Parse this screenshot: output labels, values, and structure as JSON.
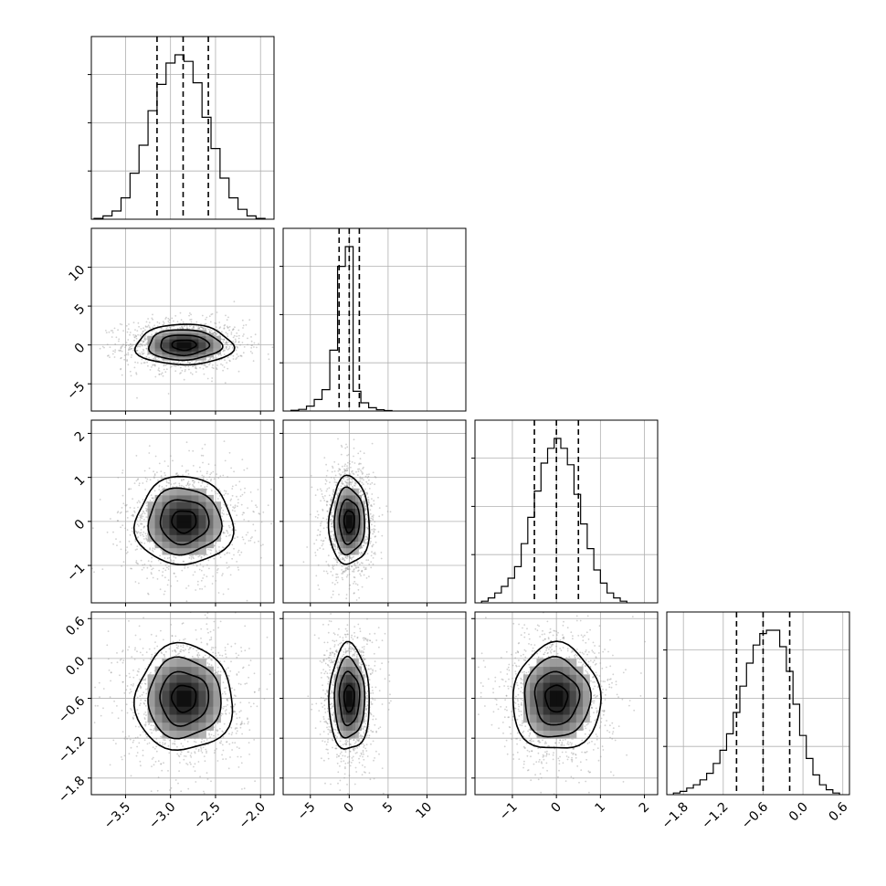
{
  "chart_data": {
    "type": "corner",
    "title": "",
    "grid": true,
    "quantiles": [
      0.16,
      0.5,
      0.84
    ],
    "parameters": [
      {
        "name": "",
        "mean": -2.85,
        "std": 0.27,
        "range": [
          -3.88,
          -1.85
        ],
        "ticks": [
          -3.5,
          -3.0,
          -2.5,
          -2.0
        ],
        "tick_labels": [
          "−3.5",
          "−3.0",
          "−2.5",
          "−2.0"
        ]
      },
      {
        "name": "",
        "mean": 0.0,
        "std": 1.3,
        "range": [
          -8.5,
          15.0
        ],
        "ticks": [
          -5,
          0,
          5,
          10
        ],
        "tick_labels": [
          "−5",
          "0",
          "5",
          "10"
        ]
      },
      {
        "name": "",
        "mean": 0.0,
        "std": 0.5,
        "range": [
          -1.85,
          2.3
        ],
        "ticks": [
          -1,
          0,
          1,
          2
        ],
        "tick_labels": [
          "−1",
          "0",
          "1",
          "2"
        ]
      },
      {
        "name": "",
        "mean": -0.6,
        "std": 0.4,
        "range": [
          -2.05,
          0.7
        ],
        "ticks": [
          -1.8,
          -1.2,
          -0.6,
          0.0,
          0.6
        ],
        "tick_labels": [
          "−1.8",
          "−1.2",
          "−0.6",
          "0.0",
          "0.6"
        ]
      }
    ],
    "histograms": [
      {
        "param": 0,
        "bin_edges": [
          -3.85,
          -3.75,
          -3.65,
          -3.55,
          -3.45,
          -3.35,
          -3.25,
          -3.15,
          -3.05,
          -2.95,
          -2.85,
          -2.75,
          -2.65,
          -2.55,
          -2.45,
          -2.35,
          -2.25,
          -2.15,
          -2.05,
          -1.95
        ],
        "counts": [
          0.005,
          0.02,
          0.05,
          0.13,
          0.28,
          0.45,
          0.66,
          0.82,
          0.95,
          1.0,
          0.96,
          0.83,
          0.62,
          0.43,
          0.25,
          0.13,
          0.06,
          0.02,
          0.005
        ],
        "quantile_values": [
          -3.15,
          -2.86,
          -2.58
        ]
      },
      {
        "param": 1,
        "bin_edges": [
          -7.5,
          -6.5,
          -5.5,
          -4.5,
          -3.5,
          -2.5,
          -1.5,
          -0.5,
          0.5,
          1.5,
          2.5,
          3.5,
          4.5,
          5.5
        ],
        "counts": [
          0.004,
          0.01,
          0.03,
          0.07,
          0.13,
          0.37,
          0.88,
          1.0,
          0.12,
          0.05,
          0.02,
          0.008,
          0.003
        ],
        "quantile_values": [
          -1.3,
          0.0,
          1.3
        ]
      },
      {
        "param": 2,
        "bin_edges": [
          -1.7,
          -1.55,
          -1.4,
          -1.25,
          -1.1,
          -0.95,
          -0.8,
          -0.65,
          -0.5,
          -0.35,
          -0.2,
          -0.05,
          0.1,
          0.25,
          0.4,
          0.55,
          0.7,
          0.85,
          1.0,
          1.15,
          1.3,
          1.45,
          1.6
        ],
        "counts": [
          0.01,
          0.03,
          0.06,
          0.1,
          0.15,
          0.22,
          0.36,
          0.52,
          0.68,
          0.85,
          0.94,
          1.0,
          0.94,
          0.84,
          0.66,
          0.48,
          0.33,
          0.2,
          0.12,
          0.06,
          0.03,
          0.01
        ],
        "quantile_values": [
          -0.5,
          0.0,
          0.5
        ]
      },
      {
        "param": 3,
        "bin_edges": [
          -1.95,
          -1.85,
          -1.75,
          -1.65,
          -1.55,
          -1.45,
          -1.35,
          -1.25,
          -1.15,
          -1.05,
          -0.95,
          -0.85,
          -0.75,
          -0.65,
          -0.55,
          -0.45,
          -0.35,
          -0.25,
          -0.15,
          -0.05,
          0.05,
          0.15,
          0.25,
          0.35,
          0.45,
          0.55
        ],
        "counts": [
          0.01,
          0.02,
          0.04,
          0.06,
          0.09,
          0.13,
          0.19,
          0.27,
          0.37,
          0.5,
          0.66,
          0.8,
          0.91,
          0.98,
          1.0,
          1.0,
          0.9,
          0.75,
          0.55,
          0.36,
          0.22,
          0.12,
          0.06,
          0.03,
          0.01
        ],
        "quantile_values": [
          -1.0,
          -0.6,
          -0.2
        ]
      }
    ],
    "contour_levels_sigma": [
      0.5,
      1.0,
      1.5,
      2.0
    ]
  }
}
